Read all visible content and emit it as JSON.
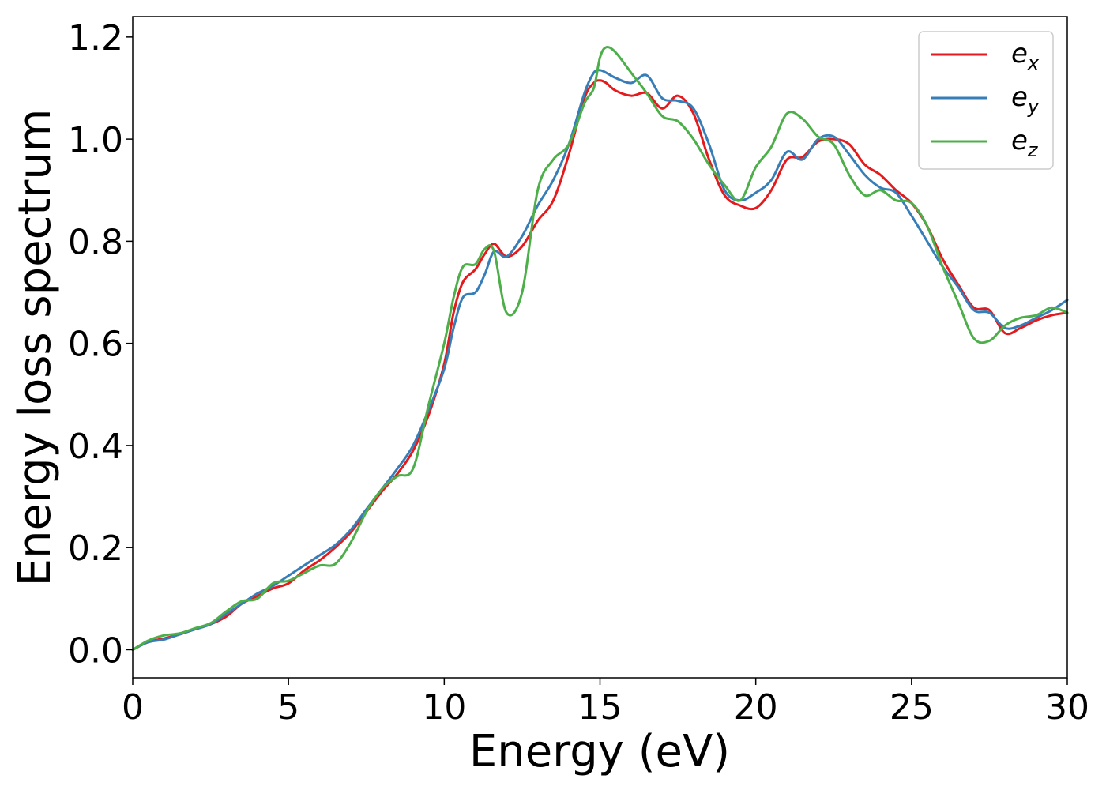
{
  "chart_data": {
    "type": "line",
    "title": "",
    "xlabel": "Energy (eV)",
    "ylabel": "Energy loss spectrum",
    "xlim": [
      0,
      30
    ],
    "ylim": [
      -0.055,
      1.24
    ],
    "xticks": [
      0,
      5,
      10,
      15,
      20,
      25,
      30
    ],
    "xtick_labels": [
      "0",
      "5",
      "10",
      "15",
      "20",
      "25",
      "30"
    ],
    "yticks": [
      0.0,
      0.2,
      0.4,
      0.6,
      0.8,
      1.0,
      1.2
    ],
    "ytick_labels": [
      "0.0",
      "0.2",
      "0.4",
      "0.6",
      "0.8",
      "1.0",
      "1.2"
    ],
    "grid": false,
    "legend_position": "top-right",
    "series": [
      {
        "name": "e_x",
        "label_base": "e",
        "label_sub": "x",
        "color": "#e41a1c",
        "x": [
          0,
          0.5,
          1,
          1.5,
          2,
          2.5,
          3,
          3.5,
          4,
          4.5,
          5,
          5.5,
          6,
          6.5,
          7,
          7.5,
          8,
          8.5,
          9,
          9.5,
          10,
          10.3,
          10.6,
          11,
          11.3,
          11.6,
          12,
          12.5,
          13,
          13.5,
          14,
          14.5,
          14.8,
          15,
          15.2,
          15.5,
          16,
          16.5,
          17,
          17.5,
          18,
          18.5,
          19,
          19.5,
          20,
          20.5,
          21,
          21.5,
          22,
          22.5,
          23,
          23.5,
          24,
          24.5,
          25,
          25.5,
          26,
          26.5,
          27,
          27.5,
          28,
          28.5,
          29,
          29.5,
          30
        ],
        "y": [
          0.0,
          0.015,
          0.022,
          0.03,
          0.04,
          0.05,
          0.065,
          0.09,
          0.105,
          0.12,
          0.13,
          0.155,
          0.175,
          0.2,
          0.23,
          0.27,
          0.31,
          0.345,
          0.39,
          0.46,
          0.56,
          0.66,
          0.72,
          0.745,
          0.775,
          0.795,
          0.77,
          0.79,
          0.84,
          0.88,
          0.97,
          1.08,
          1.11,
          1.115,
          1.11,
          1.095,
          1.085,
          1.09,
          1.06,
          1.085,
          1.05,
          0.96,
          0.89,
          0.87,
          0.865,
          0.9,
          0.96,
          0.965,
          0.995,
          1.0,
          0.99,
          0.95,
          0.93,
          0.9,
          0.875,
          0.83,
          0.765,
          0.715,
          0.67,
          0.665,
          0.62,
          0.63,
          0.645,
          0.655,
          0.66
        ]
      },
      {
        "name": "e_y",
        "label_base": "e",
        "label_sub": "y",
        "color": "#377eb8",
        "x": [
          0,
          0.5,
          1,
          1.5,
          2,
          2.5,
          3,
          3.5,
          4,
          4.5,
          5,
          5.5,
          6,
          6.5,
          7,
          7.5,
          8,
          8.5,
          9,
          9.5,
          10,
          10.3,
          10.6,
          11,
          11.3,
          11.6,
          12,
          12.5,
          13,
          13.5,
          14,
          14.5,
          14.8,
          15,
          15.2,
          15.5,
          16,
          16.5,
          17,
          17.5,
          18,
          18.5,
          19,
          19.5,
          20,
          20.5,
          21,
          21.5,
          22,
          22.5,
          23,
          23.5,
          24,
          24.5,
          25,
          25.5,
          26,
          26.5,
          27,
          27.5,
          28,
          28.5,
          29,
          29.5,
          30
        ],
        "y": [
          0.0,
          0.015,
          0.02,
          0.03,
          0.04,
          0.05,
          0.07,
          0.09,
          0.11,
          0.125,
          0.145,
          0.165,
          0.185,
          0.205,
          0.235,
          0.275,
          0.315,
          0.355,
          0.4,
          0.47,
          0.55,
          0.63,
          0.69,
          0.7,
          0.735,
          0.78,
          0.77,
          0.81,
          0.87,
          0.92,
          0.99,
          1.09,
          1.13,
          1.135,
          1.13,
          1.12,
          1.11,
          1.125,
          1.08,
          1.075,
          1.06,
          0.99,
          0.9,
          0.88,
          0.895,
          0.92,
          0.975,
          0.96,
          1.0,
          1.005,
          0.97,
          0.93,
          0.905,
          0.895,
          0.85,
          0.8,
          0.75,
          0.71,
          0.665,
          0.66,
          0.63,
          0.635,
          0.65,
          0.665,
          0.685
        ]
      },
      {
        "name": "e_z",
        "label_base": "e",
        "label_sub": "z",
        "color": "#4daf4a",
        "x": [
          0,
          0.5,
          1,
          1.5,
          2,
          2.5,
          3,
          3.5,
          4,
          4.5,
          5,
          5.5,
          6,
          6.5,
          7,
          7.5,
          8,
          8.5,
          9,
          9.5,
          10,
          10.3,
          10.6,
          11,
          11.3,
          11.6,
          12,
          12.5,
          13,
          13.5,
          14,
          14.5,
          14.8,
          15,
          15.2,
          15.5,
          16,
          16.5,
          17,
          17.5,
          18,
          18.5,
          19,
          19.5,
          20,
          20.5,
          21,
          21.5,
          22,
          22.5,
          23,
          23.5,
          24,
          24.5,
          25,
          25.5,
          26,
          26.5,
          27,
          27.5,
          28,
          28.5,
          29,
          29.5,
          30
        ],
        "y": [
          0.0,
          0.018,
          0.028,
          0.032,
          0.042,
          0.052,
          0.075,
          0.095,
          0.1,
          0.13,
          0.135,
          0.15,
          0.165,
          0.168,
          0.21,
          0.27,
          0.315,
          0.34,
          0.355,
          0.48,
          0.6,
          0.69,
          0.75,
          0.755,
          0.785,
          0.78,
          0.66,
          0.7,
          0.9,
          0.96,
          0.99,
          1.07,
          1.1,
          1.16,
          1.18,
          1.17,
          1.13,
          1.09,
          1.045,
          1.035,
          1.0,
          0.95,
          0.91,
          0.88,
          0.945,
          0.985,
          1.05,
          1.04,
          1.005,
          0.99,
          0.93,
          0.89,
          0.9,
          0.88,
          0.875,
          0.83,
          0.75,
          0.68,
          0.61,
          0.605,
          0.635,
          0.65,
          0.655,
          0.67,
          0.66
        ]
      }
    ]
  }
}
